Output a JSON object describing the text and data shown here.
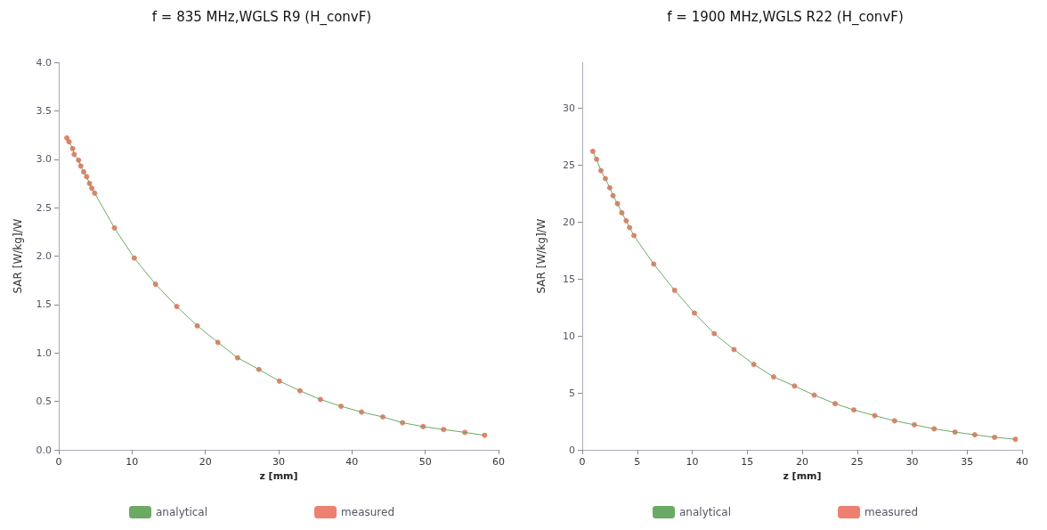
{
  "chart_data": [
    {
      "type": "line",
      "title": "f = 835 MHz,WGLS R9 (H_convF)",
      "xlabel": "z [mm]",
      "ylabel": "SAR [W/kg]/W",
      "xlim": [
        0,
        60
      ],
      "xticks": [
        0,
        10,
        20,
        30,
        40,
        50,
        60
      ],
      "ylim": [
        0,
        4
      ],
      "yticks": [
        {
          "value": 0,
          "label": "0.0"
        },
        {
          "value": 0.5,
          "label": "0.5"
        },
        {
          "value": 1,
          "label": "1.0"
        },
        {
          "value": 1.5,
          "label": "1.5"
        },
        {
          "value": 2,
          "label": "2.0"
        },
        {
          "value": 2.5,
          "label": "2.5"
        },
        {
          "value": 3,
          "label": "3.0"
        },
        {
          "value": 3.5,
          "label": "3.5"
        },
        {
          "value": 4,
          "label": "4.0"
        }
      ],
      "grid": false,
      "legend": "bottom",
      "x": [
        1.1,
        1.4,
        1.9,
        2.1,
        2.7,
        3.0,
        3.4,
        3.8,
        4.2,
        4.5,
        4.9,
        7.6,
        10.3,
        13.2,
        16.1,
        18.9,
        21.7,
        24.4,
        27.3,
        30.1,
        32.9,
        35.7,
        38.5,
        41.3,
        44.2,
        46.9,
        49.7,
        52.5,
        55.4,
        58.1
      ],
      "series": [
        {
          "name": "analytical",
          "color": "#6aaa64",
          "marker": "none",
          "values": [
            3.22,
            3.18,
            3.11,
            3.05,
            2.99,
            2.93,
            2.87,
            2.82,
            2.75,
            2.7,
            2.65,
            2.29,
            1.98,
            1.71,
            1.48,
            1.28,
            1.11,
            0.95,
            0.83,
            0.71,
            0.61,
            0.52,
            0.45,
            0.39,
            0.34,
            0.28,
            0.24,
            0.21,
            0.18,
            0.15
          ]
        },
        {
          "name": "measured",
          "type": "scatter",
          "color": "#e8604c",
          "marker": "circle",
          "values": [
            3.22,
            3.18,
            3.11,
            3.05,
            2.99,
            2.93,
            2.87,
            2.82,
            2.75,
            2.7,
            2.65,
            2.29,
            1.98,
            1.71,
            1.48,
            1.28,
            1.11,
            0.95,
            0.83,
            0.71,
            0.61,
            0.52,
            0.45,
            0.39,
            0.34,
            0.28,
            0.24,
            0.21,
            0.18,
            0.15
          ]
        }
      ]
    },
    {
      "type": "line",
      "title": "f = 1900 MHz,WGLS R22 (H_convF)",
      "xlabel": "z [mm]",
      "ylabel": "SAR [W/kg]/W",
      "xlim": [
        0,
        40
      ],
      "xticks": [
        0,
        5,
        10,
        15,
        20,
        25,
        30,
        35,
        40
      ],
      "ylim": [
        0,
        34
      ],
      "yticks": [
        0,
        5,
        10,
        15,
        20,
        25,
        30
      ],
      "grid": false,
      "legend": "bottom",
      "x": [
        0.96,
        1.3,
        1.7,
        2.1,
        2.5,
        2.8,
        3.2,
        3.6,
        4.0,
        4.3,
        4.7,
        6.5,
        8.4,
        10.2,
        12.0,
        13.8,
        15.6,
        17.4,
        19.3,
        21.1,
        23.0,
        24.7,
        26.6,
        28.4,
        30.2,
        32.0,
        33.9,
        35.7,
        37.5,
        39.4
      ],
      "series": [
        {
          "name": "analytical",
          "color": "#6aaa64",
          "marker": "none",
          "values": [
            26.2,
            25.5,
            24.5,
            23.8,
            23.0,
            22.3,
            21.6,
            20.8,
            20.1,
            19.5,
            18.8,
            16.3,
            14.0,
            12.0,
            10.2,
            8.8,
            7.5,
            6.4,
            5.6,
            4.8,
            4.05,
            3.5,
            3.0,
            2.55,
            2.2,
            1.84,
            1.56,
            1.32,
            1.1,
            0.93
          ]
        },
        {
          "name": "measured",
          "type": "scatter",
          "color": "#e8604c",
          "marker": "circle",
          "values": [
            26.2,
            25.5,
            24.5,
            23.8,
            23.0,
            22.3,
            21.6,
            20.8,
            20.1,
            19.5,
            18.8,
            16.3,
            14.0,
            12.0,
            10.2,
            8.8,
            7.5,
            6.4,
            5.6,
            4.8,
            4.05,
            3.5,
            3.0,
            2.55,
            2.2,
            1.84,
            1.56,
            1.32,
            1.1,
            0.93
          ]
        }
      ]
    }
  ]
}
